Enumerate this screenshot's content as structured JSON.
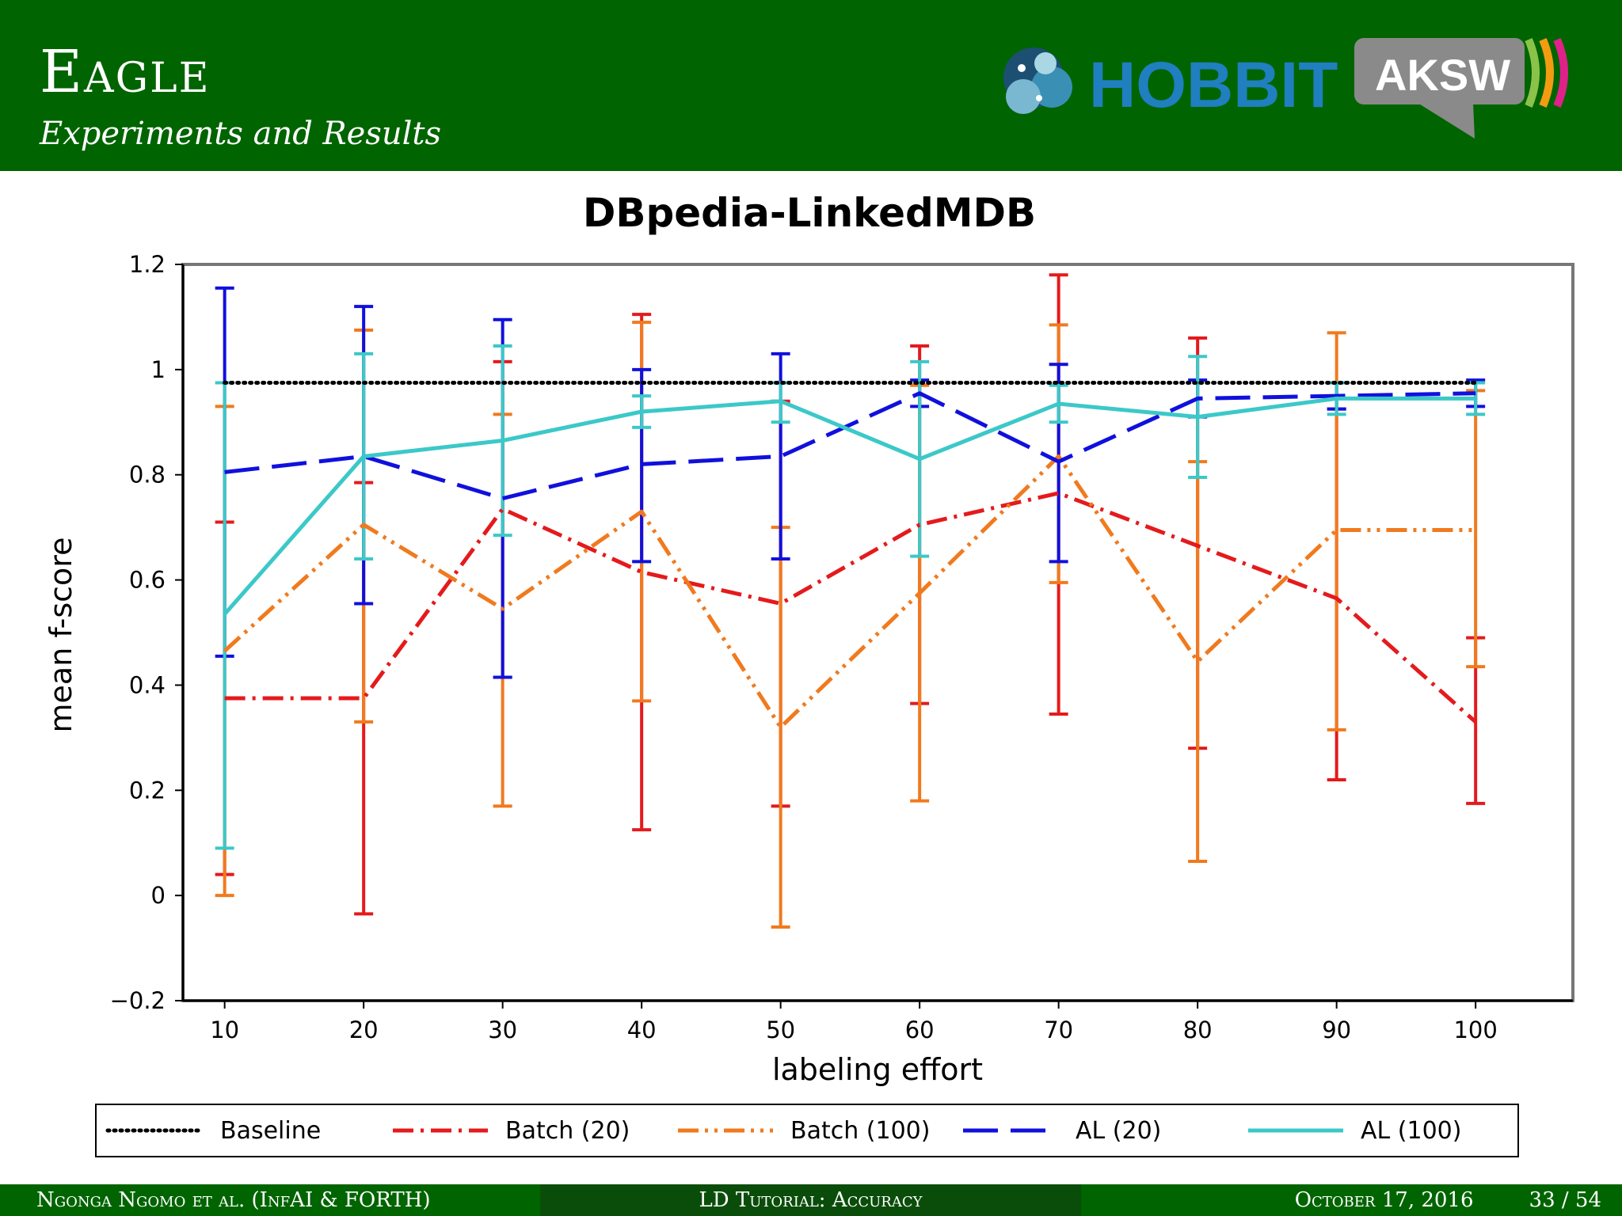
{
  "slide": {
    "title": "Eagle",
    "subtitle": "Experiments and Results"
  },
  "logos": {
    "hobbit": "HOBBIT",
    "aksw": "AKSW"
  },
  "footer": {
    "authors": "Ngonga Ngomo et al. (InfAI & FORTH)",
    "talk": "LD Tutorial: Accuracy",
    "date": "October 17, 2016",
    "page": "33 / 54"
  },
  "colors": {
    "header_bg": "#006400",
    "baseline": "#000000",
    "batch20": "#e41a1c",
    "batch100": "#f07a1e",
    "al20": "#1010dd",
    "al100": "#3cc8c8"
  },
  "chart_data": {
    "type": "line",
    "title": "DBpedia-LinkedMDB",
    "xlabel": "labeling effort",
    "ylabel": "mean f-score",
    "x": [
      10,
      20,
      30,
      40,
      50,
      60,
      70,
      80,
      90,
      100
    ],
    "xticks": [
      "10",
      "20",
      "30",
      "40",
      "50",
      "60",
      "70",
      "80",
      "90",
      "100"
    ],
    "xlim": [
      7,
      107
    ],
    "ylim": [
      -0.2,
      1.2
    ],
    "yticks": [
      -0.2,
      0,
      0.2,
      0.4,
      0.6,
      0.8,
      1,
      1.2
    ],
    "ytick_labels": [
      "−0.2",
      "0",
      "0.2",
      "0.4",
      "0.6",
      "0.8",
      "1",
      "1.2"
    ],
    "grid": false,
    "legend_position": "bottom",
    "series": [
      {
        "name": "Baseline",
        "color": "#000000",
        "style": "dotted",
        "values": [
          0.975,
          0.975,
          0.975,
          0.975,
          0.975,
          0.975,
          0.975,
          0.975,
          0.975,
          0.975
        ]
      },
      {
        "name": "Batch (20)",
        "color": "#e41a1c",
        "style": "dashdot",
        "values": [
          0.375,
          0.375,
          0.735,
          0.615,
          0.555,
          0.705,
          0.765,
          0.665,
          0.565,
          0.33
        ],
        "error_low": [
          0.04,
          -0.035,
          0.415,
          0.125,
          0.17,
          0.365,
          0.345,
          0.28,
          0.22,
          0.175
        ],
        "error_high": [
          0.71,
          0.785,
          1.015,
          1.105,
          0.94,
          1.045,
          1.18,
          1.06,
          0.925,
          0.49
        ]
      },
      {
        "name": "Batch (100)",
        "color": "#f07a1e",
        "style": "dashdotdot",
        "values": [
          0.465,
          0.705,
          0.545,
          0.73,
          0.32,
          0.575,
          0.835,
          0.445,
          0.695,
          0.695
        ],
        "error_low": [
          0.0,
          0.33,
          0.17,
          0.37,
          -0.06,
          0.18,
          0.595,
          0.065,
          0.315,
          0.435
        ],
        "error_high": [
          0.93,
          1.075,
          0.915,
          1.09,
          0.7,
          0.97,
          1.085,
          0.825,
          1.07,
          0.96
        ]
      },
      {
        "name": "AL (20)",
        "color": "#1010dd",
        "style": "dashed",
        "values": [
          0.805,
          0.835,
          0.755,
          0.82,
          0.835,
          0.955,
          0.825,
          0.945,
          0.95,
          0.955
        ],
        "error_low": [
          0.455,
          0.555,
          0.415,
          0.635,
          0.64,
          0.93,
          0.635,
          0.91,
          0.925,
          0.93
        ],
        "error_high": [
          1.155,
          1.12,
          1.095,
          1.0,
          1.03,
          0.98,
          1.01,
          0.98,
          0.975,
          0.98
        ]
      },
      {
        "name": "AL (100)",
        "color": "#3cc8c8",
        "style": "solid",
        "values": [
          0.535,
          0.835,
          0.865,
          0.92,
          0.94,
          0.83,
          0.935,
          0.91,
          0.945,
          0.945
        ],
        "error_low": [
          0.09,
          0.64,
          0.685,
          0.89,
          0.9,
          0.645,
          0.9,
          0.795,
          0.915,
          0.915
        ],
        "error_high": [
          0.975,
          1.03,
          1.045,
          0.95,
          0.975,
          1.015,
          0.97,
          1.025,
          0.975,
          0.975
        ]
      }
    ]
  }
}
